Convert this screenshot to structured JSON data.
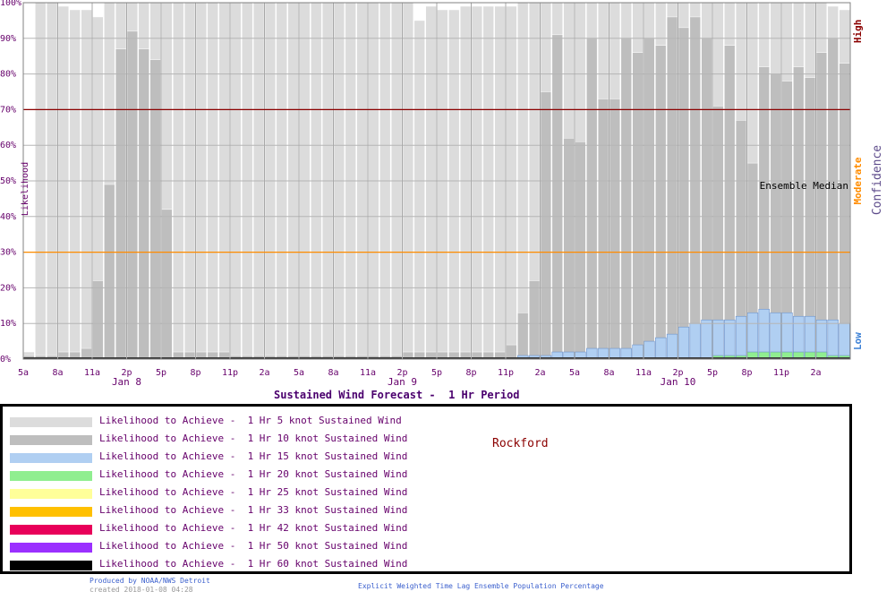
{
  "chart_data": {
    "type": "bar",
    "title": "Sustained Wind Forecast -  1 Hr Period",
    "ylabel": "Likelihood",
    "ylim": [
      0,
      100
    ],
    "y_ticks": [
      "0%",
      "10%",
      "20%",
      "30%",
      "40%",
      "50%",
      "60%",
      "70%",
      "80%",
      "90%",
      "100%"
    ],
    "x_tick_labels": [
      "5a",
      "8a",
      "11a",
      "2p",
      "5p",
      "8p",
      "11p",
      "2a",
      "5a",
      "8a",
      "11a",
      "2p",
      "5p",
      "8p",
      "11p",
      "2a",
      "5a",
      "8a",
      "11a",
      "2p",
      "5p",
      "8p",
      "11p",
      "2a"
    ],
    "x_tick_hours": [
      0,
      3,
      6,
      9,
      12,
      15,
      18,
      21,
      24,
      27,
      30,
      33,
      36,
      39,
      42,
      45,
      48,
      51,
      54,
      57,
      60,
      63,
      66,
      69
    ],
    "day_labels": [
      {
        "text": "Jan  8",
        "hour": 9
      },
      {
        "text": "Jan  9",
        "hour": 33
      },
      {
        "text": "Jan 10",
        "hour": 57
      }
    ],
    "threshold_lines": [
      {
        "value": 70,
        "color": "#8b0000"
      },
      {
        "value": 30,
        "color": "#ff8c00"
      }
    ],
    "confidence_axis": {
      "title": "Confidence",
      "labels": [
        {
          "text": "High",
          "value": 92,
          "color": "#8b0000"
        },
        {
          "text": "Moderate",
          "value": 50,
          "color": "#ff8c00"
        },
        {
          "text": "Low",
          "value": 5,
          "color": "#3a7fd5"
        }
      ]
    },
    "annotation": "Ensemble Median",
    "series": [
      {
        "name": "Likelihood to Achieve -  1 Hr 5 knot Sustained Wind",
        "color": "#dcdcdc",
        "values": [
          2,
          100,
          100,
          99,
          98,
          98,
          96,
          100,
          100,
          100,
          100,
          100,
          100,
          100,
          100,
          100,
          100,
          100,
          100,
          100,
          100,
          100,
          100,
          100,
          100,
          100,
          100,
          100,
          100,
          100,
          100,
          100,
          100,
          100,
          95,
          99,
          98,
          98,
          99,
          99,
          99,
          99,
          99,
          100,
          100,
          100,
          100,
          100,
          100,
          100,
          100,
          100,
          100,
          100,
          100,
          100,
          100,
          100,
          100,
          100,
          100,
          100,
          100,
          100,
          100,
          100,
          100,
          100,
          100,
          100,
          99,
          98
        ]
      },
      {
        "name": "Likelihood to Achieve -  1 Hr 10 knot Sustained Wind",
        "color": "#bebebe",
        "values": [
          1,
          1,
          1,
          2,
          2,
          3,
          22,
          49,
          87,
          92,
          87,
          84,
          42,
          2,
          2,
          2,
          2,
          2,
          1,
          1,
          1,
          1,
          1,
          1,
          1,
          1,
          1,
          1,
          1,
          1,
          1,
          1,
          1,
          2,
          2,
          2,
          2,
          2,
          2,
          2,
          2,
          2,
          4,
          13,
          22,
          75,
          91,
          62,
          61,
          90,
          73,
          73,
          90,
          86,
          90,
          88,
          96,
          93,
          96,
          90,
          71,
          88,
          67,
          55,
          82,
          80,
          78,
          82,
          79,
          86,
          90,
          83
        ]
      },
      {
        "name": "Likelihood to Achieve -  1 Hr 15 knot Sustained Wind",
        "color": "#b0cff2",
        "values": [
          0,
          0,
          0,
          0,
          0,
          0,
          0,
          0,
          0,
          0,
          0,
          0,
          0,
          0,
          0,
          0,
          0,
          0,
          0,
          0,
          0,
          0,
          0,
          0,
          0,
          0,
          0,
          0,
          0,
          0,
          0,
          0,
          0,
          0,
          0,
          0,
          0,
          0,
          0,
          0,
          0,
          0,
          0,
          1,
          1,
          1,
          2,
          2,
          2,
          3,
          3,
          3,
          3,
          4,
          5,
          6,
          7,
          9,
          10,
          11,
          11,
          11,
          12,
          13,
          14,
          13,
          13,
          12,
          12,
          11,
          11,
          10
        ]
      },
      {
        "name": "Likelihood to Achieve -  1 Hr 20 knot Sustained Wind",
        "color": "#90ee90",
        "values": [
          0,
          0,
          0,
          0,
          0,
          0,
          0,
          0,
          0,
          0,
          0,
          0,
          0,
          0,
          0,
          0,
          0,
          0,
          0,
          0,
          0,
          0,
          0,
          0,
          0,
          0,
          0,
          0,
          0,
          0,
          0,
          0,
          0,
          0,
          0,
          0,
          0,
          0,
          0,
          0,
          0,
          0,
          0,
          0,
          0,
          0,
          0,
          0,
          0,
          0,
          0,
          0,
          0,
          0,
          0,
          0,
          0,
          0,
          0,
          0,
          1,
          1,
          1,
          2,
          2,
          2,
          2,
          2,
          2,
          2,
          1,
          1
        ]
      },
      {
        "name": "Likelihood to Achieve -  1 Hr 25 knot Sustained Wind",
        "color": "#ffff99",
        "values": []
      },
      {
        "name": "Likelihood to Achieve -  1 Hr 33 knot Sustained Wind",
        "color": "#ffc000",
        "values": []
      },
      {
        "name": "Likelihood to Achieve -  1 Hr 42 knot Sustained Wind",
        "color": "#e8005a",
        "values": []
      },
      {
        "name": "Likelihood to Achieve -  1 Hr 50 knot Sustained Wind",
        "color": "#9b30ff",
        "values": []
      },
      {
        "name": "Likelihood to Achieve -  1 Hr 60 knot Sustained Wind",
        "color": "#000000",
        "values": []
      }
    ]
  },
  "legend": {
    "items": [
      {
        "label": "Likelihood to Achieve -  1 Hr 5 knot Sustained Wind",
        "color": "#dcdcdc"
      },
      {
        "label": "Likelihood to Achieve -  1 Hr 10 knot Sustained Wind",
        "color": "#bebebe"
      },
      {
        "label": "Likelihood to Achieve -  1 Hr 15 knot Sustained Wind",
        "color": "#b0cff2"
      },
      {
        "label": "Likelihood to Achieve -  1 Hr 20 knot Sustained Wind",
        "color": "#90ee90"
      },
      {
        "label": "Likelihood to Achieve -  1 Hr 25 knot Sustained Wind",
        "color": "#ffff99"
      },
      {
        "label": "Likelihood to Achieve -  1 Hr 33 knot Sustained Wind",
        "color": "#ffc000"
      },
      {
        "label": "Likelihood to Achieve -  1 Hr 42 knot Sustained Wind",
        "color": "#e8005a"
      },
      {
        "label": "Likelihood to Achieve -  1 Hr 50 knot Sustained Wind",
        "color": "#9b30ff"
      },
      {
        "label": "Likelihood to Achieve -  1 Hr 60 knot Sustained Wind",
        "color": "#000000"
      }
    ]
  },
  "station": "Rockford",
  "footer": {
    "produced_by": "Produced by NOAA/NWS Detroit",
    "created": "created 2018-01-08 04:28",
    "method": "Explicit Weighted Time Lag Ensemble Population Percentage"
  }
}
